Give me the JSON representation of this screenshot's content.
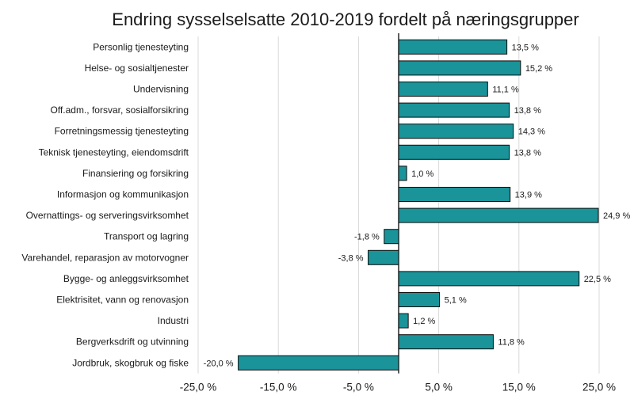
{
  "chart_data": {
    "type": "bar",
    "orientation": "horizontal",
    "title": "Endring sysselselsatte 2010-2019 fordelt på næringsgrupper",
    "categories": [
      "Personlig tjenesteyting",
      "Helse- og sosialtjenester",
      "Undervisning",
      "Off.adm., forsvar, sosialforsikring",
      "Forretningsmessig tjenesteyting",
      "Teknisk tjenesteyting, eiendomsdrift",
      "Finansiering og forsikring",
      "Informasjon og kommunikasjon",
      "Overnattings- og serveringsvirksomhet",
      "Transport og lagring",
      "Varehandel, reparasjon av motorvogner",
      "Bygge- og anleggsvirksomhet",
      "Elektrisitet, vann og renovasjon",
      "Industri",
      "Bergverksdrift og utvinning",
      "Jordbruk, skogbruk og fiske"
    ],
    "values": [
      13.5,
      15.2,
      11.1,
      13.8,
      14.3,
      13.8,
      1.0,
      13.9,
      24.9,
      -1.8,
      -3.8,
      22.5,
      5.1,
      1.2,
      11.8,
      -20.0
    ],
    "data_labels": [
      "13,5 %",
      "15,2 %",
      "11,1 %",
      "13,8 %",
      "14,3 %",
      "13,8 %",
      "1,0 %",
      "13,9 %",
      "24,9 %",
      "-1,8 %",
      "-3,8 %",
      "22,5 %",
      "5,1 %",
      "1,2 %",
      "11,8 %",
      "-20,0 %"
    ],
    "xlim": [
      -25,
      25
    ],
    "x_ticks": [
      -25,
      -15,
      -5,
      5,
      15,
      25
    ],
    "x_tick_labels": [
      "-25,0 %",
      "-15,0 %",
      "-5,0 %",
      "5,0 %",
      "15,0 %",
      "25,0 %"
    ],
    "xlabel": "",
    "ylabel": "",
    "grid": true,
    "legend": "none",
    "bar_color": "#1a9399",
    "bar_edge_color": "#0d0d0d"
  }
}
